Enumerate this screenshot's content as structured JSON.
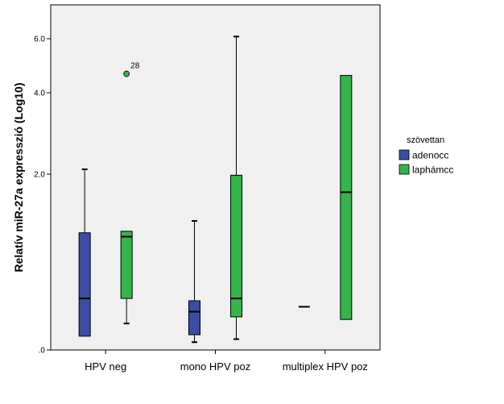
{
  "chart_data": {
    "type": "boxplot",
    "title": "",
    "xlabel": "",
    "ylabel": "Relatív miR-27a expresszió (Log10)",
    "yscale": "log10",
    "ylim": [
      0,
      6.7
    ],
    "yticks": [
      0,
      2.0,
      4.0,
      6.0
    ],
    "ytick_labels": [
      ".0",
      "2.0",
      "4.0",
      "6.0"
    ],
    "grid": false,
    "categories": [
      "HPV neg",
      "mono HPV poz",
      "multiplex HPV poz"
    ],
    "legend": {
      "title": "szövettan",
      "position": "right",
      "entries": [
        {
          "name": "adenocc",
          "color": "#3a4ea5"
        },
        {
          "name": "laphámcc",
          "color": "#33b54a"
        }
      ]
    },
    "series": [
      {
        "name": "adenocc",
        "color": "#3a4ea5",
        "boxes": [
          {
            "category": "HPV neg",
            "min": 0.09,
            "q1": 0.09,
            "median": 0.38,
            "q3": 1.08,
            "max": 2.12
          },
          {
            "category": "mono HPV poz",
            "min": 0.05,
            "q1": 0.1,
            "median": 0.27,
            "q3": 0.36,
            "max": 1.24
          },
          {
            "category": "multiplex HPV poz",
            "min": 0.31,
            "q1": 0.31,
            "median": 0.31,
            "q3": 0.31,
            "max": 0.31
          }
        ]
      },
      {
        "name": "laphámcc",
        "color": "#33b54a",
        "boxes": [
          {
            "category": "HPV neg",
            "min": 0.18,
            "q1": 0.38,
            "median": 1.03,
            "q3": 1.1,
            "max": 1.1
          },
          {
            "category": "mono HPV poz",
            "min": 0.07,
            "q1": 0.23,
            "median": 0.38,
            "q3": 1.98,
            "max": 6.08
          },
          {
            "category": "multiplex HPV poz",
            "min": 0.21,
            "q1": 0.21,
            "median": 1.68,
            "q3": 4.64,
            "max": 4.64
          }
        ]
      }
    ],
    "outliers": [
      {
        "series": "laphámcc",
        "category": "HPV neg",
        "value": 4.7,
        "label": "28"
      }
    ]
  }
}
